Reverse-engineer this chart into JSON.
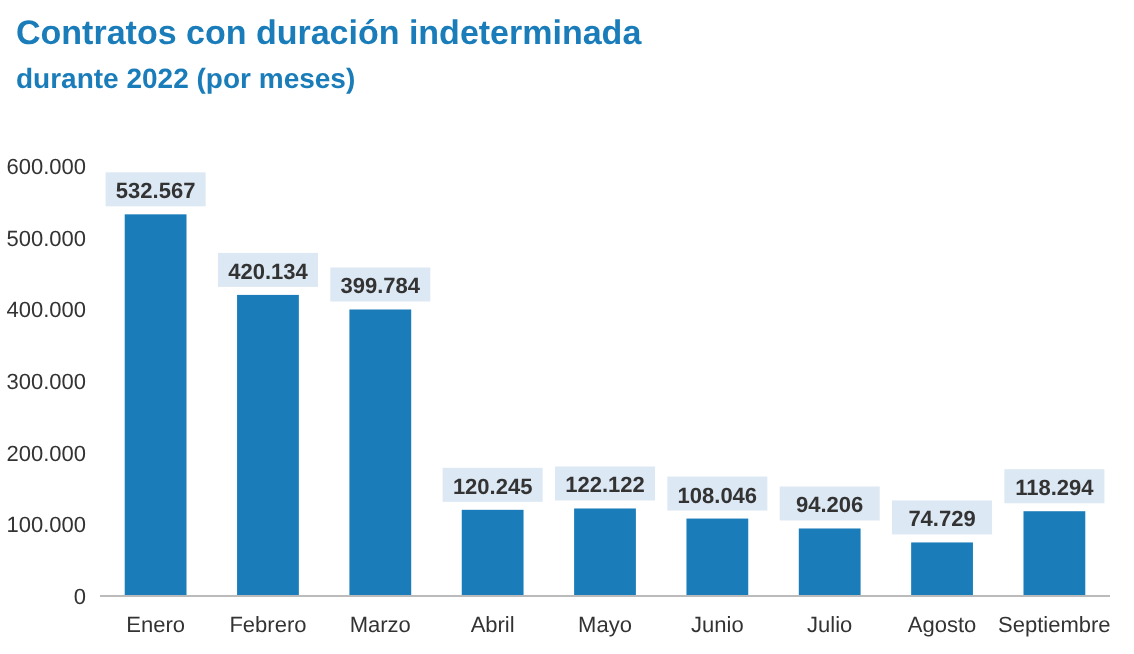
{
  "chart_data": {
    "type": "bar",
    "title": "Contratos con duración indeterminada",
    "subtitle": "durante 2022 (por meses)",
    "categories": [
      "Enero",
      "Febrero",
      "Marzo",
      "Abril",
      "Mayo",
      "Junio",
      "Julio",
      "Agosto",
      "Septiembre"
    ],
    "values": [
      532567,
      420134,
      399784,
      120245,
      122122,
      108046,
      94206,
      74729,
      118294
    ],
    "value_labels": [
      "532.567",
      "420.134",
      "399.784",
      "120.245",
      "122.122",
      "108.046",
      "94.206",
      "74.729",
      "118.294"
    ],
    "color": "#1a7dba",
    "ylim": [
      0,
      600000
    ],
    "yticks": [
      {
        "value": 0,
        "label": "0"
      },
      {
        "value": 100000,
        "label": "100.000"
      },
      {
        "value": 200000,
        "label": "200.000"
      },
      {
        "value": 300000,
        "label": "300.000"
      },
      {
        "value": 400000,
        "label": "400.000"
      },
      {
        "value": 500000,
        "label": "500.000"
      },
      {
        "value": 600000,
        "label": "600.000"
      }
    ]
  }
}
